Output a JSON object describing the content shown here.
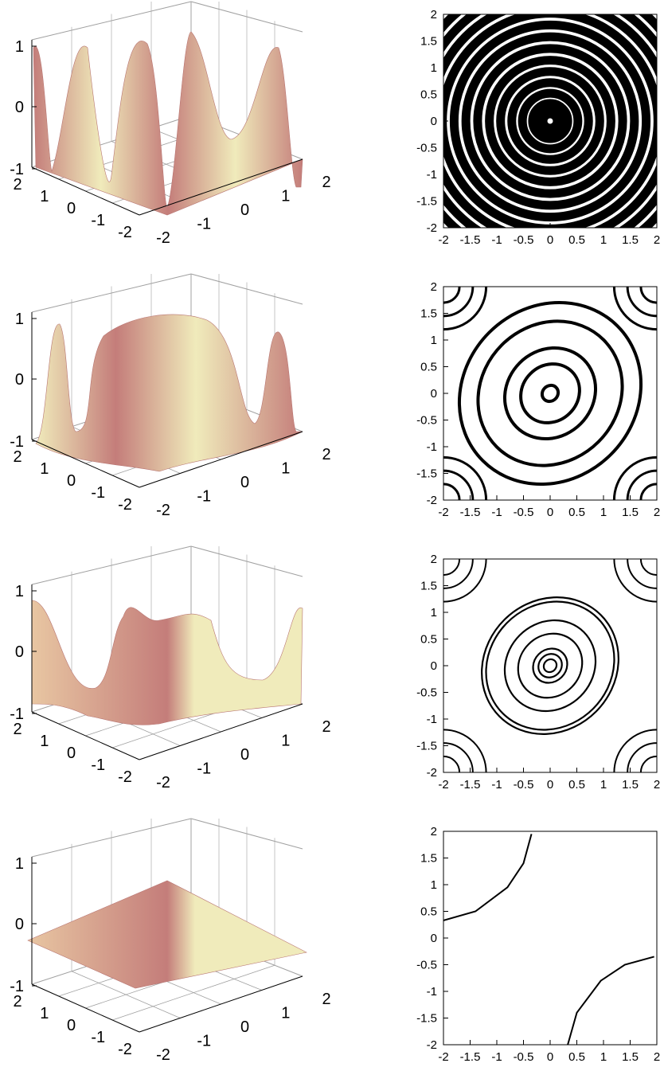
{
  "colors": {
    "surface_light": "#f0ebbb",
    "surface_dark": "#c47d7a",
    "contour": "#000000",
    "axis": "#000000",
    "grid_3d": "#a0a0a0"
  },
  "chart_data": [
    {
      "type": "surface",
      "row": 1,
      "x_ticks": [
        "2",
        "1",
        "0",
        "-1",
        "-2"
      ],
      "y_ticks": [
        "-2",
        "-1",
        "0",
        "1",
        "2"
      ],
      "z_ticks": [
        "1",
        "0",
        "-1"
      ],
      "xlim": [
        -2,
        2
      ],
      "ylim": [
        -2,
        2
      ],
      "zlim": [
        -1,
        1
      ],
      "description_ref": "concentric ripples, high frequency"
    },
    {
      "type": "contour",
      "row": 1,
      "x_ticks": [
        "-2",
        "-1.5",
        "-1",
        "-0.5",
        "0",
        "0.5",
        "1",
        "1.5",
        "2"
      ],
      "y_ticks": [
        "2",
        "1.5",
        "1",
        "0.5",
        "0",
        "-0.5",
        "-1",
        "-1.5",
        "-2"
      ],
      "xlim": [
        -2,
        2
      ],
      "ylim": [
        -2,
        2
      ],
      "rings": [
        0.03,
        0.18,
        0.33,
        0.52,
        0.72,
        0.93,
        1.14,
        1.36,
        1.58,
        1.8,
        2.02,
        2.24,
        2.46,
        2.68
      ]
    },
    {
      "type": "surface",
      "row": 2,
      "x_ticks": [
        "2",
        "1",
        "0",
        "-1",
        "-2"
      ],
      "y_ticks": [
        "-2",
        "-1",
        "0",
        "1",
        "2"
      ],
      "z_ticks": [
        "1",
        "0",
        "-1"
      ],
      "xlim": [
        -2,
        2
      ],
      "ylim": [
        -2,
        2
      ],
      "zlim": [
        -1,
        1
      ]
    },
    {
      "type": "contour",
      "row": 2,
      "x_ticks": [
        "-2",
        "-1.5",
        "-1",
        "-0.5",
        "0",
        "0.5",
        "1",
        "1.5",
        "2"
      ],
      "y_ticks": [
        "2",
        "1.5",
        "1",
        "0.5",
        "0",
        "-0.5",
        "-1",
        "-1.5",
        "-2"
      ],
      "xlim": [
        -2,
        2
      ],
      "ylim": [
        -2,
        2
      ],
      "rings": [
        0.15,
        0.55,
        0.85,
        1.35,
        1.7
      ]
    },
    {
      "type": "surface",
      "row": 3,
      "x_ticks": [
        "2",
        "1",
        "0",
        "-1",
        "-2"
      ],
      "y_ticks": [
        "-2",
        "-1",
        "0",
        "1",
        "2"
      ],
      "z_ticks": [
        "1",
        "0",
        "-1"
      ],
      "xlim": [
        -2,
        2
      ],
      "ylim": [
        -2,
        2
      ],
      "zlim": [
        -1,
        1
      ]
    },
    {
      "type": "contour",
      "row": 3,
      "x_ticks": [
        "-2",
        "-1.5",
        "-1",
        "-0.5",
        "0",
        "0.5",
        "1",
        "1.5",
        "2"
      ],
      "y_ticks": [
        "2",
        "1.5",
        "1",
        "0.5",
        "0",
        "-0.5",
        "-1",
        "-1.5",
        "-2"
      ],
      "xlim": [
        -2,
        2
      ],
      "ylim": [
        -2,
        2
      ],
      "rings": [
        0.12,
        0.22,
        0.32,
        0.6,
        0.85,
        1.2,
        1.28
      ]
    },
    {
      "type": "surface",
      "row": 4,
      "x_ticks": [
        "2",
        "1",
        "0",
        "-1",
        "-2"
      ],
      "y_ticks": [
        "-2",
        "-1",
        "0",
        "1",
        "2"
      ],
      "z_ticks": [
        "1",
        "0",
        "-1"
      ],
      "xlim": [
        -2,
        2
      ],
      "ylim": [
        -2,
        2
      ],
      "zlim": [
        -1,
        1
      ]
    },
    {
      "type": "contour",
      "row": 4,
      "x_ticks": [
        "-2",
        "-1.5",
        "-1",
        "-0.5",
        "0",
        "0.5",
        "1",
        "1.5",
        "2"
      ],
      "y_ticks": [
        "2",
        "1.5",
        "1",
        "0.5",
        "0",
        "-0.5",
        "-1",
        "-1.5",
        "-2"
      ],
      "xlim": [
        -2,
        2
      ],
      "ylim": [
        -2,
        2
      ],
      "curves": [
        {
          "points": [
            [
              -2,
              0.33
            ],
            [
              -1.4,
              0.5
            ],
            [
              -0.8,
              0.95
            ],
            [
              -0.5,
              1.4
            ],
            [
              -0.35,
              1.95
            ]
          ]
        },
        {
          "points": [
            [
              0.33,
              -2
            ],
            [
              0.5,
              -1.4
            ],
            [
              0.95,
              -0.8
            ],
            [
              1.4,
              -0.5
            ],
            [
              1.95,
              -0.35
            ]
          ]
        }
      ]
    }
  ]
}
